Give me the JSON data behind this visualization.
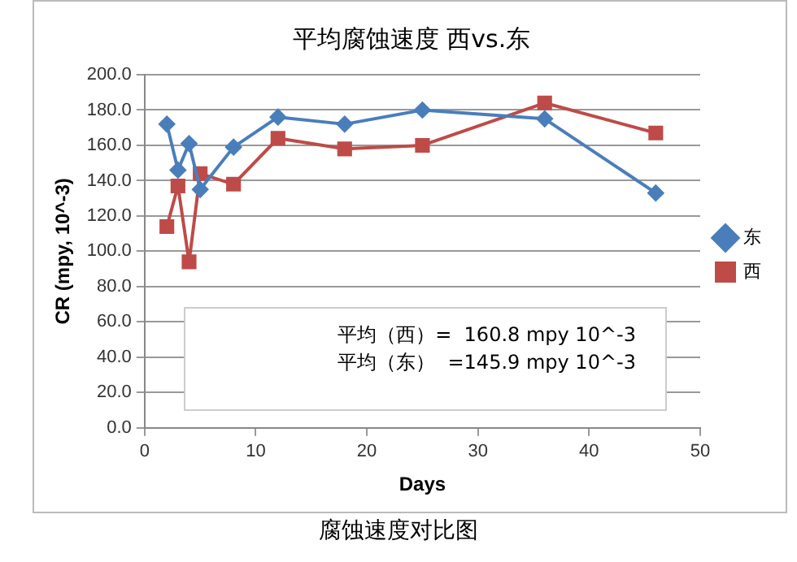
{
  "chart_data": {
    "type": "line",
    "title": "平均腐蚀速度 西vs.东",
    "xlabel": "Days",
    "ylabel": "CR (mpy, 10^-3)",
    "series": [
      {
        "name": "东",
        "color": "#4a7ebb",
        "marker": "diamond",
        "x": [
          2,
          3,
          4,
          5,
          8,
          12,
          18,
          25,
          36,
          46
        ],
        "values": [
          172,
          146,
          161,
          135,
          159,
          176,
          172,
          180,
          175,
          133
        ]
      },
      {
        "name": "西",
        "color": "#be4b48",
        "marker": "square",
        "x": [
          2,
          3,
          4,
          5,
          8,
          12,
          18,
          25,
          36,
          46
        ],
        "values": [
          114,
          137,
          94,
          144,
          138,
          164,
          158,
          160,
          184,
          167
        ]
      }
    ],
    "xlim": [
      0,
      50
    ],
    "xticks": [
      0,
      10,
      20,
      30,
      40,
      50
    ],
    "ylim": [
      0,
      200
    ],
    "yticks": [
      {
        "value": 0,
        "label": "0.0"
      },
      {
        "value": 20,
        "label": "20.0"
      },
      {
        "value": 40,
        "label": "40.0"
      },
      {
        "value": 60,
        "label": "60.0"
      },
      {
        "value": 80,
        "label": "80.0"
      },
      {
        "value": 100,
        "label": "100.0"
      },
      {
        "value": 120,
        "label": "120.0"
      },
      {
        "value": 140,
        "label": "140.0"
      },
      {
        "value": 160,
        "label": "160.0"
      },
      {
        "value": 180,
        "label": "180.0"
      },
      {
        "value": 200,
        "label": "200.0"
      }
    ],
    "grid": "y",
    "legend": "right",
    "line_style": "solid",
    "annotations": [
      "平均（西）=  160.8 mpy 10^-3",
      "平均（东）  =145.9 mpy 10^-3",
      "腐蚀速度对比图"
    ]
  }
}
